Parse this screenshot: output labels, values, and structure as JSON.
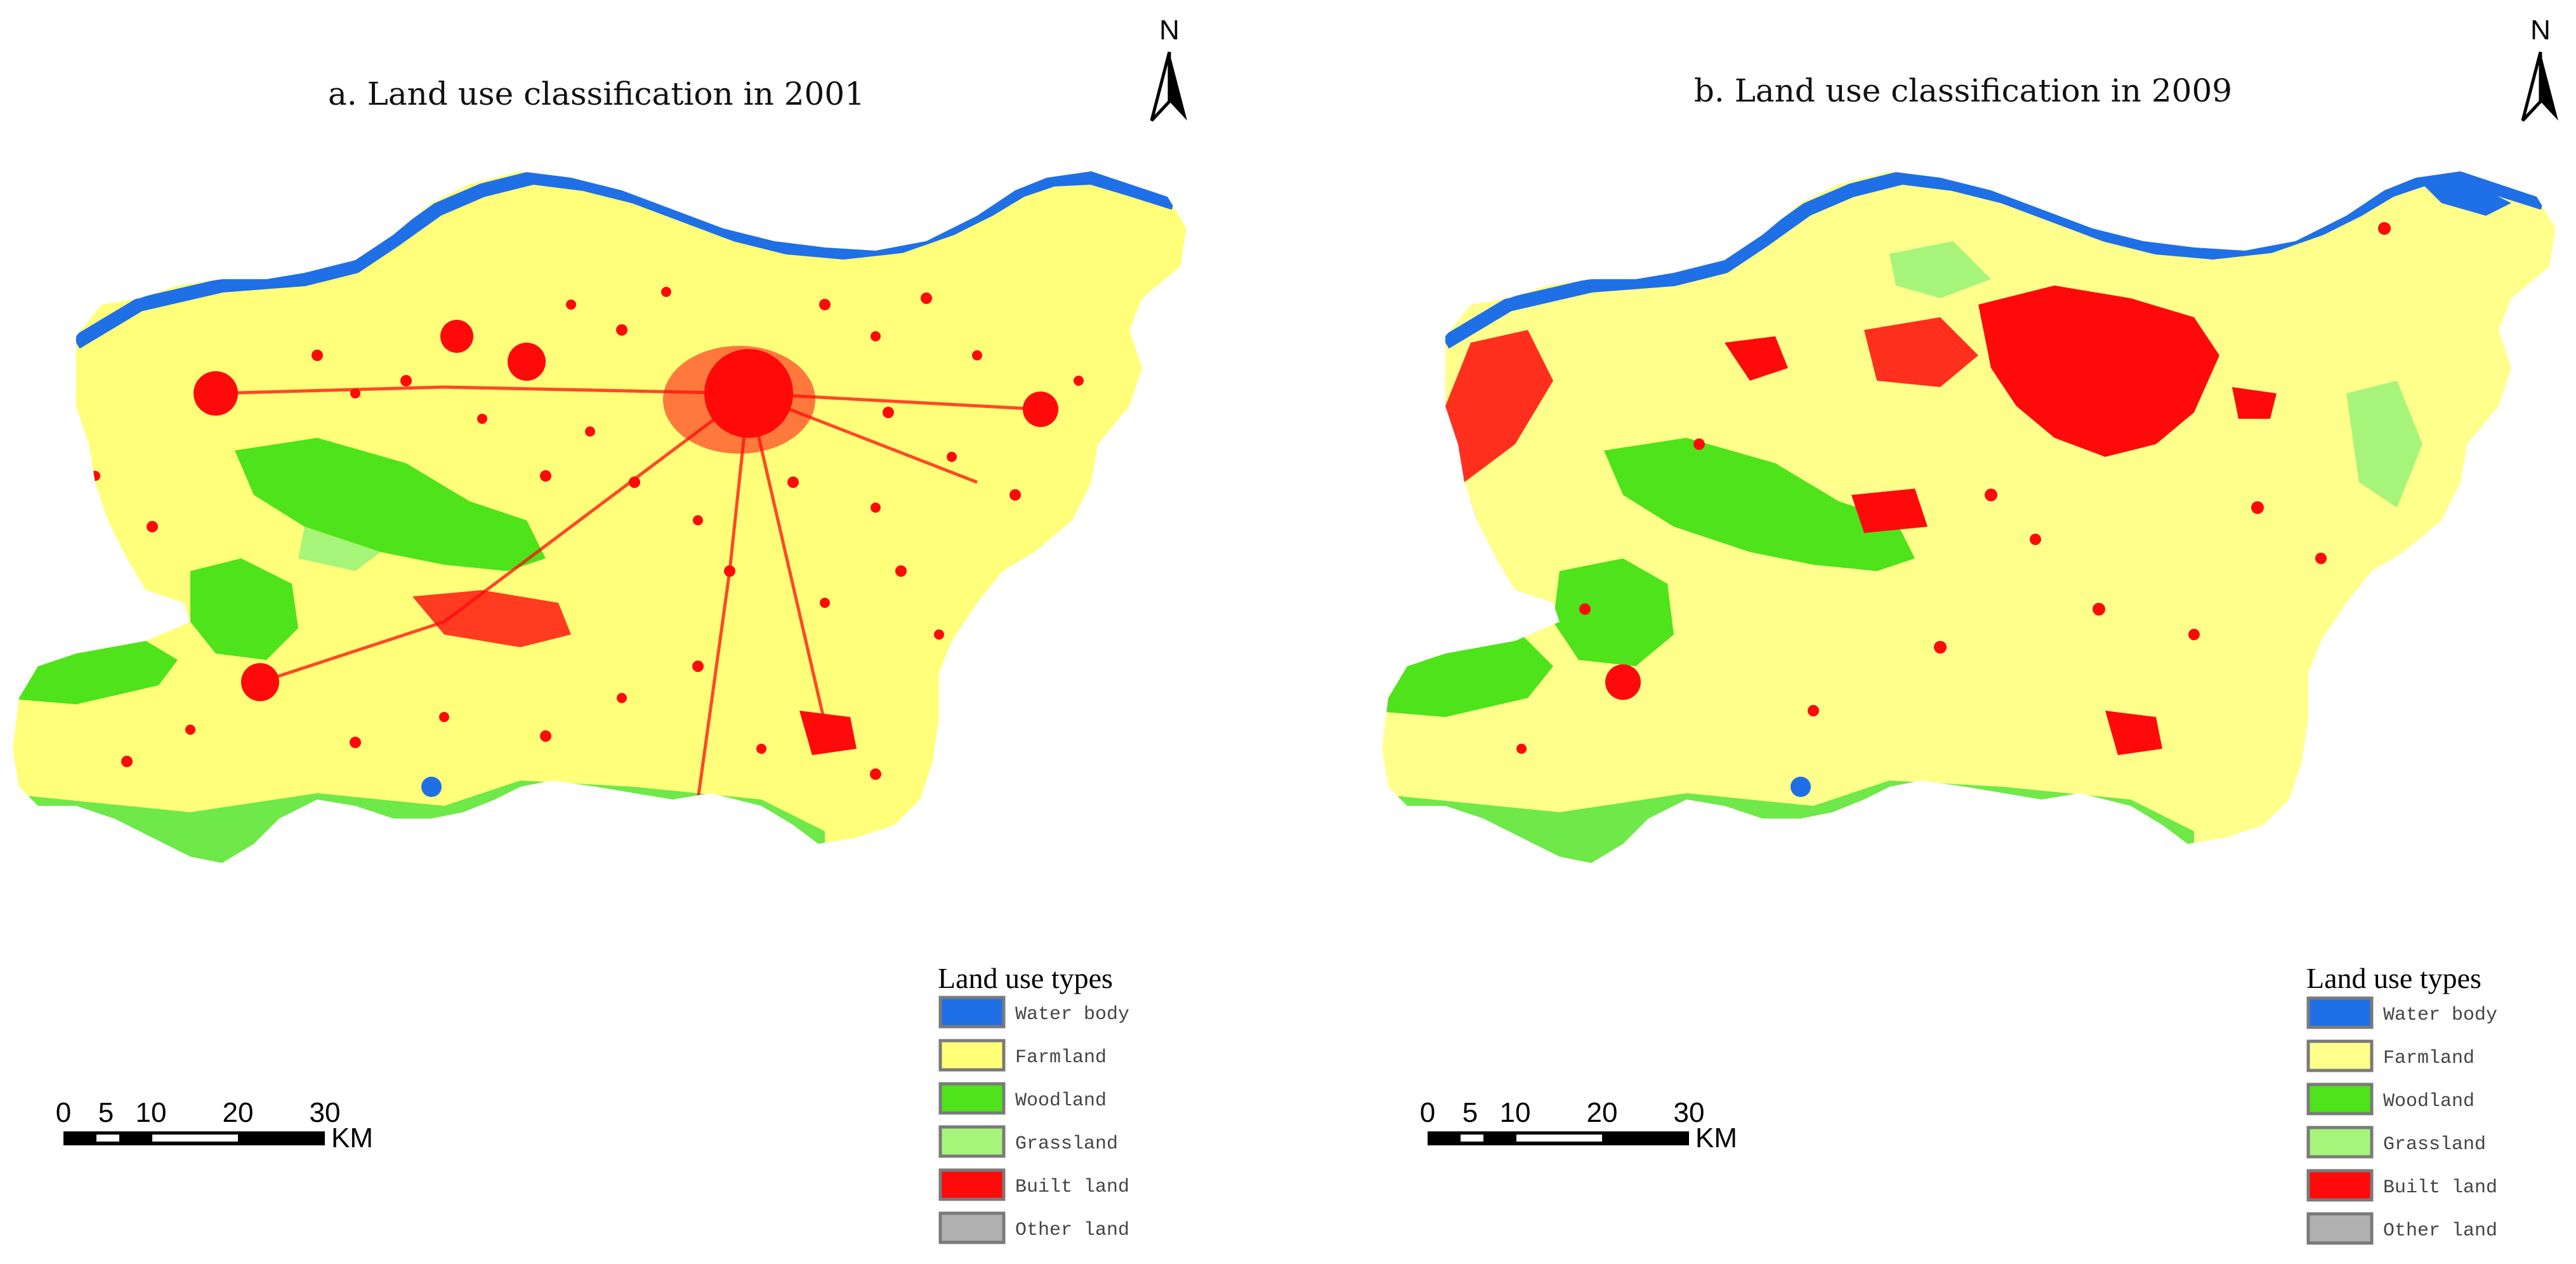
{
  "panels": [
    {
      "title": "a. Land use classification in 2001",
      "north": "N",
      "scale": {
        "ticks": [
          "0",
          "5",
          "10",
          "20",
          "30"
        ],
        "unit": "KM"
      },
      "legend": {
        "title": "Land use types",
        "items": [
          {
            "label": "Water body",
            "color": "#1f6fe6"
          },
          {
            "label": "Farmland",
            "color": "#ffff7a"
          },
          {
            "label": "Woodland",
            "color": "#4ee31a"
          },
          {
            "label": "Grassland",
            "color": "#a6f57a"
          },
          {
            "label": "Built land",
            "color": "#ff0a0a"
          },
          {
            "label": "Other land",
            "color": "#b0b0b0"
          }
        ]
      }
    },
    {
      "title": "b. Land use classification in 2009",
      "north": "N",
      "scale": {
        "ticks": [
          "0",
          "5",
          "10",
          "20",
          "30"
        ],
        "unit": "KM"
      },
      "legend": {
        "title": "Land use types",
        "items": [
          {
            "label": "Water body",
            "color": "#1f6fe6"
          },
          {
            "label": "Farmland",
            "color": "#ffff8c"
          },
          {
            "label": "Woodland",
            "color": "#4ee31a"
          },
          {
            "label": "Grassland",
            "color": "#a6f57a"
          },
          {
            "label": "Built land",
            "color": "#ff0a0a"
          },
          {
            "label": "Other land",
            "color": "#b0b0b0"
          }
        ]
      }
    }
  ]
}
